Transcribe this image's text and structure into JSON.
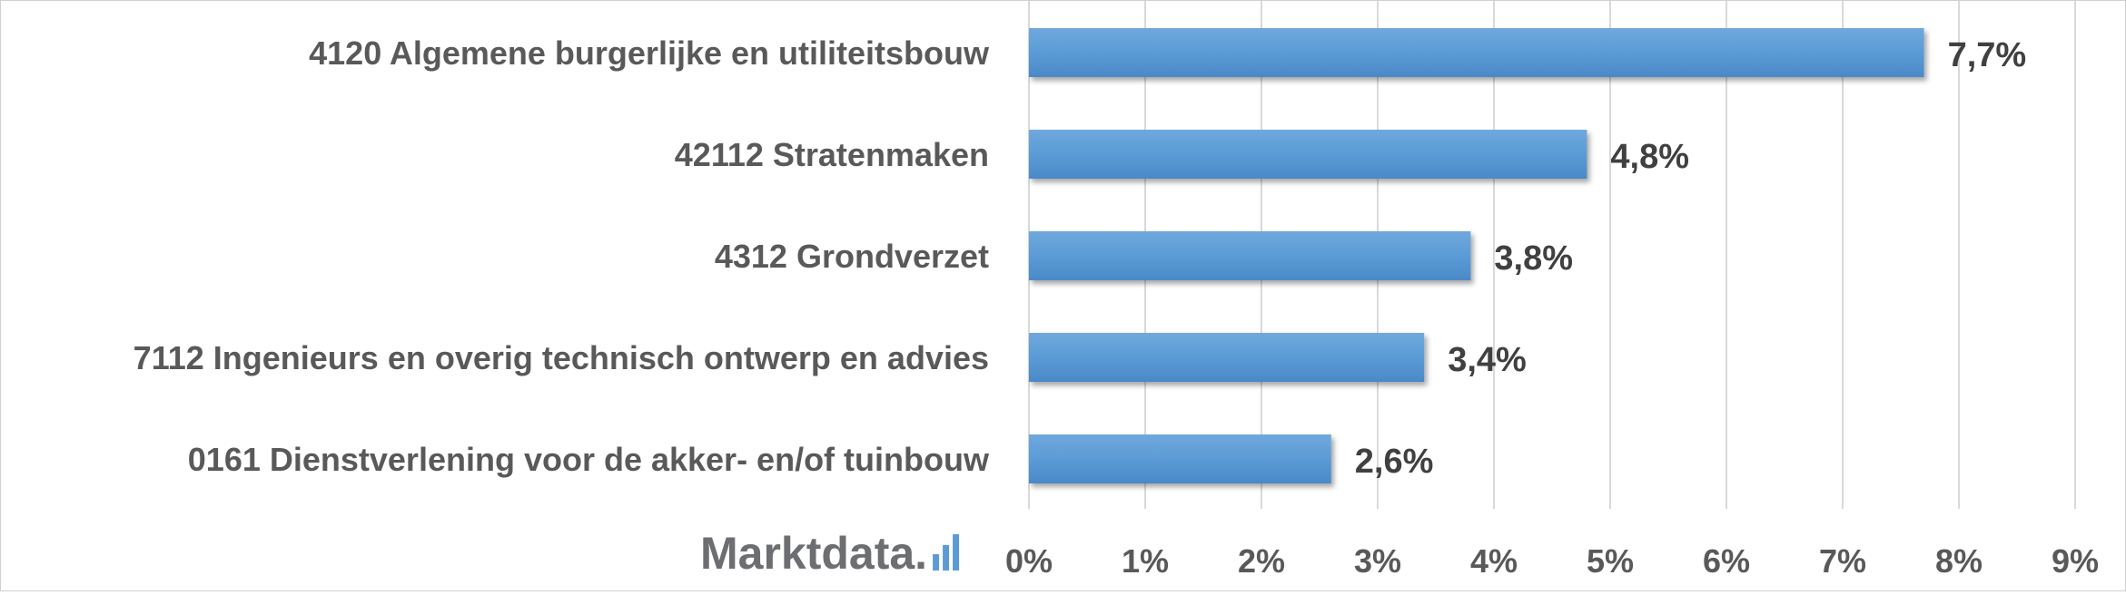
{
  "chart_data": {
    "type": "bar",
    "orientation": "horizontal",
    "categories": [
      "4120 Algemene burgerlijke en utiliteitsbouw",
      "42112 Stratenmaken",
      "4312 Grondverzet",
      "7112 Ingenieurs en overig technisch ontwerp en advies",
      "0161 Dienstverlening voor de akker- en/of tuinbouw"
    ],
    "values": [
      7.7,
      4.8,
      3.8,
      3.4,
      2.6
    ],
    "data_labels": [
      "7,7%",
      "4,8%",
      "3,8%",
      "3,4%",
      "2,6%"
    ],
    "xlim": [
      0,
      9
    ],
    "x_ticks": [
      0,
      1,
      2,
      3,
      4,
      5,
      6,
      7,
      8,
      9
    ],
    "x_tick_labels": [
      "0%",
      "1%",
      "2%",
      "3%",
      "4%",
      "5%",
      "6%",
      "7%",
      "8%",
      "9%"
    ],
    "grid": true,
    "legend": "none",
    "title": "",
    "xlabel": "",
    "ylabel": "",
    "bar_color": "#5b9bd5"
  },
  "branding": {
    "logo_text": "Marktdata.",
    "logo_icon": "bar-chart-icon",
    "logo_color": "#6d6e71",
    "logo_accent": "#5b9bd5"
  }
}
